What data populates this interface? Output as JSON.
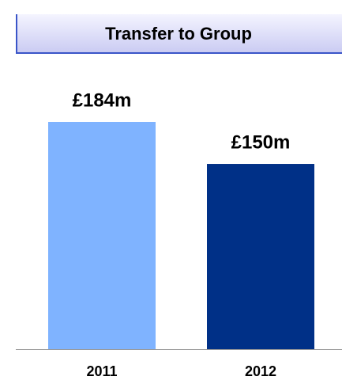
{
  "chart_data": {
    "type": "bar",
    "title": "Transfer to Group",
    "categories": [
      "2011",
      "2012"
    ],
    "values": [
      184,
      150
    ],
    "value_labels": [
      "£184m",
      "£150m"
    ],
    "colors": [
      "#7fb3ff",
      "#003087"
    ]
  }
}
